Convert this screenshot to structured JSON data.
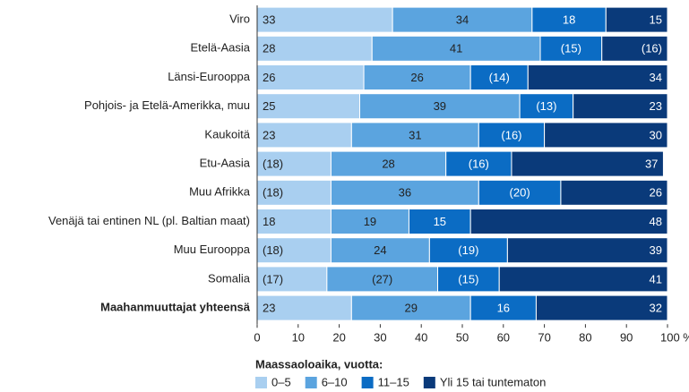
{
  "chart_data": {
    "type": "stacked-bar-horizontal",
    "categories": [
      "Viro",
      "Etelä-Aasia",
      "Länsi-Eurooppa",
      "Pohjois- ja Etelä-Amerikka, muu",
      "Kaukoitä",
      "Etu-Aasia",
      "Muu Afrikka",
      "Venäjä tai entinen NL (pl. Baltian maat)",
      "Muu Eurooppa",
      "Somalia",
      "Maahanmuuttajat yhteensä"
    ],
    "series": [
      {
        "name": "0–5",
        "color": "#a9cff0",
        "values": [
          33,
          28,
          26,
          25,
          23,
          18,
          18,
          18,
          18,
          17,
          23
        ],
        "value_labels": [
          "33",
          "28",
          "26",
          "25",
          "23",
          "(18)",
          "(18)",
          "18",
          "(18)",
          "(17)",
          "23"
        ]
      },
      {
        "name": "6–10",
        "color": "#5ba4df",
        "values": [
          34,
          41,
          26,
          39,
          31,
          28,
          36,
          19,
          24,
          27,
          29
        ],
        "value_labels": [
          "34",
          "41",
          "26",
          "39",
          "31",
          "28",
          "36",
          "19",
          "24",
          "(27)",
          "29"
        ]
      },
      {
        "name": "11–15",
        "color": "#0b6cc4",
        "values": [
          18,
          15,
          14,
          13,
          16,
          16,
          20,
          15,
          19,
          15,
          16
        ],
        "value_labels": [
          "18",
          "(15)",
          "(14)",
          "(13)",
          "(16)",
          "(16)",
          "(20)",
          "15",
          "(19)",
          "(15)",
          "16"
        ]
      },
      {
        "name": "Yli 15 tai tuntematon",
        "color": "#0a3a7a",
        "values": [
          15,
          16,
          34,
          23,
          30,
          37,
          26,
          48,
          39,
          41,
          32
        ],
        "value_labels": [
          "15",
          "(16)",
          "34",
          "23",
          "30",
          "37",
          "26",
          "48",
          "39",
          "41",
          "32"
        ]
      }
    ],
    "xlim": [
      0,
      100
    ],
    "xticks": [
      0,
      10,
      20,
      30,
      40,
      50,
      60,
      70,
      80,
      90,
      {
        "value": 100,
        "label": "100 %"
      }
    ],
    "legend_title": "Maassaoloaika, vuotta:"
  }
}
